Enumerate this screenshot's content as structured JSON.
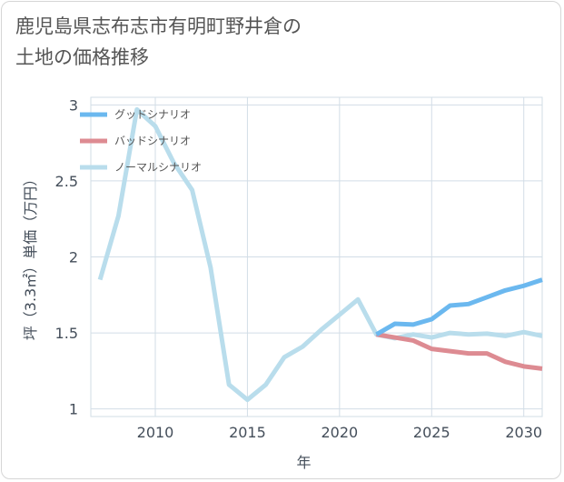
{
  "title": "鹿児島県志布志市有明町野井倉の\n土地の価格推移",
  "chart_data": {
    "type": "line",
    "xlabel": "年",
    "ylabel": "坪（3.3㎡）単価（万円）",
    "xlim": [
      2006.5,
      2031
    ],
    "ylim": [
      0.95,
      3.05
    ],
    "xticks": [
      2010,
      2015,
      2020,
      2025,
      2030
    ],
    "yticks": [
      1,
      1.5,
      2,
      2.5,
      3
    ],
    "xtick_labels": [
      "2010",
      "2015",
      "2020",
      "2025",
      "2030"
    ],
    "ytick_labels": [
      "1",
      "1.5",
      "2",
      "2.5",
      "3"
    ],
    "grid": true,
    "legend_position": "top-left",
    "series": [
      {
        "name": "グッドシナリオ",
        "color": "#6bb8ef",
        "x": [
          2022,
          2023,
          2024,
          2025,
          2026,
          2027,
          2028,
          2029,
          2030,
          2031
        ],
        "y": [
          1.49,
          1.56,
          1.555,
          1.59,
          1.68,
          1.69,
          1.735,
          1.78,
          1.81,
          1.85
        ]
      },
      {
        "name": "バッドシナリオ",
        "color": "#dd8b92",
        "x": [
          2022,
          2023,
          2024,
          2025,
          2026,
          2027,
          2028,
          2029,
          2030,
          2031
        ],
        "y": [
          1.49,
          1.47,
          1.45,
          1.395,
          1.38,
          1.365,
          1.365,
          1.31,
          1.28,
          1.265
        ]
      },
      {
        "name": "ノーマルシナリオ",
        "color": "#b9ddec",
        "x": [
          2007,
          2008,
          2009,
          2010,
          2011,
          2012,
          2013,
          2014,
          2015,
          2016,
          2017,
          2018,
          2019,
          2020,
          2021,
          2022,
          2023,
          2024,
          2025,
          2026,
          2027,
          2028,
          2029,
          2030,
          2031
        ],
        "y": [
          1.85,
          2.27,
          2.97,
          2.86,
          2.62,
          2.44,
          1.93,
          1.16,
          1.06,
          1.16,
          1.34,
          1.41,
          1.52,
          1.62,
          1.72,
          1.49,
          1.465,
          1.49,
          1.47,
          1.5,
          1.49,
          1.495,
          1.48,
          1.505,
          1.48
        ]
      }
    ]
  }
}
